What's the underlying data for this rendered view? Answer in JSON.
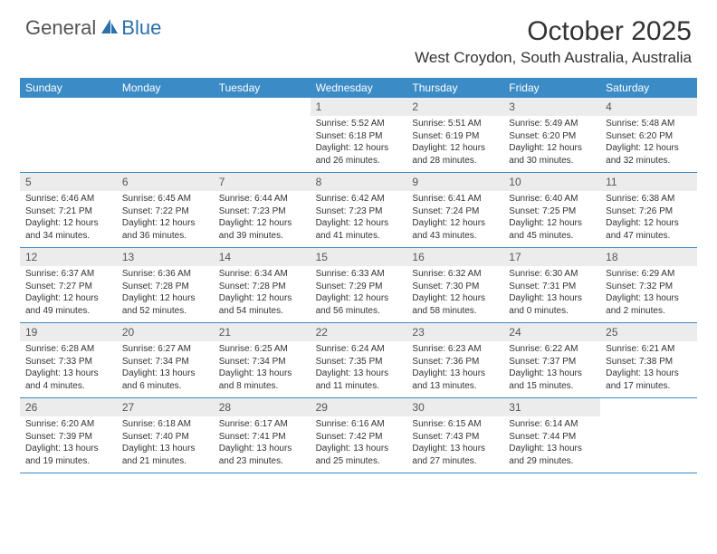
{
  "logo": {
    "general": "General",
    "blue": "Blue"
  },
  "title": "October 2025",
  "location": "West Croydon, South Australia, Australia",
  "colors": {
    "header_bg": "#3b8bc6",
    "daynum_bg": "#ececec",
    "border": "#3b8bc6",
    "text": "#333333",
    "logo_blue": "#2b6fab"
  },
  "day_names": [
    "Sunday",
    "Monday",
    "Tuesday",
    "Wednesday",
    "Thursday",
    "Friday",
    "Saturday"
  ],
  "weeks": [
    [
      null,
      null,
      null,
      {
        "n": "1",
        "sr": "5:52 AM",
        "ss": "6:18 PM",
        "dl": "12 hours and 26 minutes."
      },
      {
        "n": "2",
        "sr": "5:51 AM",
        "ss": "6:19 PM",
        "dl": "12 hours and 28 minutes."
      },
      {
        "n": "3",
        "sr": "5:49 AM",
        "ss": "6:20 PM",
        "dl": "12 hours and 30 minutes."
      },
      {
        "n": "4",
        "sr": "5:48 AM",
        "ss": "6:20 PM",
        "dl": "12 hours and 32 minutes."
      }
    ],
    [
      {
        "n": "5",
        "sr": "6:46 AM",
        "ss": "7:21 PM",
        "dl": "12 hours and 34 minutes."
      },
      {
        "n": "6",
        "sr": "6:45 AM",
        "ss": "7:22 PM",
        "dl": "12 hours and 36 minutes."
      },
      {
        "n": "7",
        "sr": "6:44 AM",
        "ss": "7:23 PM",
        "dl": "12 hours and 39 minutes."
      },
      {
        "n": "8",
        "sr": "6:42 AM",
        "ss": "7:23 PM",
        "dl": "12 hours and 41 minutes."
      },
      {
        "n": "9",
        "sr": "6:41 AM",
        "ss": "7:24 PM",
        "dl": "12 hours and 43 minutes."
      },
      {
        "n": "10",
        "sr": "6:40 AM",
        "ss": "7:25 PM",
        "dl": "12 hours and 45 minutes."
      },
      {
        "n": "11",
        "sr": "6:38 AM",
        "ss": "7:26 PM",
        "dl": "12 hours and 47 minutes."
      }
    ],
    [
      {
        "n": "12",
        "sr": "6:37 AM",
        "ss": "7:27 PM",
        "dl": "12 hours and 49 minutes."
      },
      {
        "n": "13",
        "sr": "6:36 AM",
        "ss": "7:28 PM",
        "dl": "12 hours and 52 minutes."
      },
      {
        "n": "14",
        "sr": "6:34 AM",
        "ss": "7:28 PM",
        "dl": "12 hours and 54 minutes."
      },
      {
        "n": "15",
        "sr": "6:33 AM",
        "ss": "7:29 PM",
        "dl": "12 hours and 56 minutes."
      },
      {
        "n": "16",
        "sr": "6:32 AM",
        "ss": "7:30 PM",
        "dl": "12 hours and 58 minutes."
      },
      {
        "n": "17",
        "sr": "6:30 AM",
        "ss": "7:31 PM",
        "dl": "13 hours and 0 minutes."
      },
      {
        "n": "18",
        "sr": "6:29 AM",
        "ss": "7:32 PM",
        "dl": "13 hours and 2 minutes."
      }
    ],
    [
      {
        "n": "19",
        "sr": "6:28 AM",
        "ss": "7:33 PM",
        "dl": "13 hours and 4 minutes."
      },
      {
        "n": "20",
        "sr": "6:27 AM",
        "ss": "7:34 PM",
        "dl": "13 hours and 6 minutes."
      },
      {
        "n": "21",
        "sr": "6:25 AM",
        "ss": "7:34 PM",
        "dl": "13 hours and 8 minutes."
      },
      {
        "n": "22",
        "sr": "6:24 AM",
        "ss": "7:35 PM",
        "dl": "13 hours and 11 minutes."
      },
      {
        "n": "23",
        "sr": "6:23 AM",
        "ss": "7:36 PM",
        "dl": "13 hours and 13 minutes."
      },
      {
        "n": "24",
        "sr": "6:22 AM",
        "ss": "7:37 PM",
        "dl": "13 hours and 15 minutes."
      },
      {
        "n": "25",
        "sr": "6:21 AM",
        "ss": "7:38 PM",
        "dl": "13 hours and 17 minutes."
      }
    ],
    [
      {
        "n": "26",
        "sr": "6:20 AM",
        "ss": "7:39 PM",
        "dl": "13 hours and 19 minutes."
      },
      {
        "n": "27",
        "sr": "6:18 AM",
        "ss": "7:40 PM",
        "dl": "13 hours and 21 minutes."
      },
      {
        "n": "28",
        "sr": "6:17 AM",
        "ss": "7:41 PM",
        "dl": "13 hours and 23 minutes."
      },
      {
        "n": "29",
        "sr": "6:16 AM",
        "ss": "7:42 PM",
        "dl": "13 hours and 25 minutes."
      },
      {
        "n": "30",
        "sr": "6:15 AM",
        "ss": "7:43 PM",
        "dl": "13 hours and 27 minutes."
      },
      {
        "n": "31",
        "sr": "6:14 AM",
        "ss": "7:44 PM",
        "dl": "13 hours and 29 minutes."
      },
      null
    ]
  ],
  "labels": {
    "sunrise": "Sunrise:",
    "sunset": "Sunset:",
    "daylight": "Daylight:"
  }
}
